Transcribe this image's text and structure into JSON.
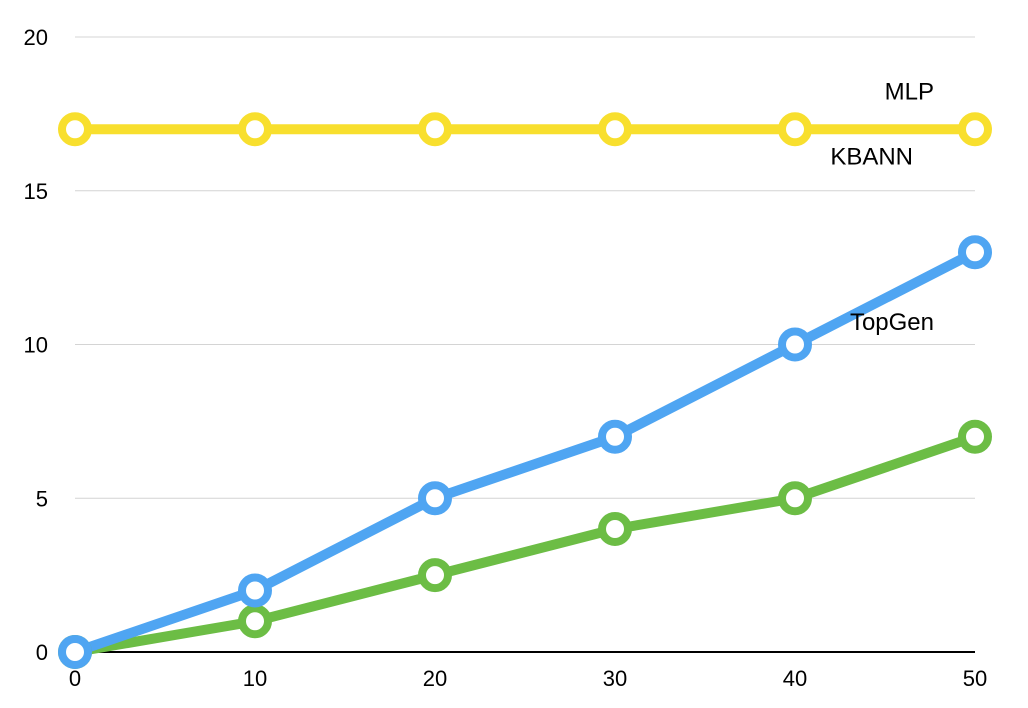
{
  "chart_data": {
    "type": "line",
    "x": [
      0,
      10,
      20,
      30,
      40,
      50
    ],
    "xticks": [
      "0",
      "10",
      "20",
      "30",
      "40",
      "50"
    ],
    "yticks": [
      "0",
      "5",
      "10",
      "15",
      "20"
    ],
    "xlim": [
      0,
      50
    ],
    "ylim": [
      0,
      20
    ],
    "grid": "horizontal",
    "legend": "inline labels at right end of each line",
    "series": [
      {
        "name": "MLP",
        "color": "#f8df2e",
        "values": [
          17,
          17,
          17,
          17,
          17,
          17
        ]
      },
      {
        "name": "KBANN",
        "color": "#4fa5f2",
        "values": [
          0,
          2,
          5,
          7,
          10,
          13
        ]
      },
      {
        "name": "TopGen",
        "color": "#6cbd45",
        "values": [
          0,
          1,
          2.5,
          4,
          5,
          7
        ]
      }
    ]
  }
}
